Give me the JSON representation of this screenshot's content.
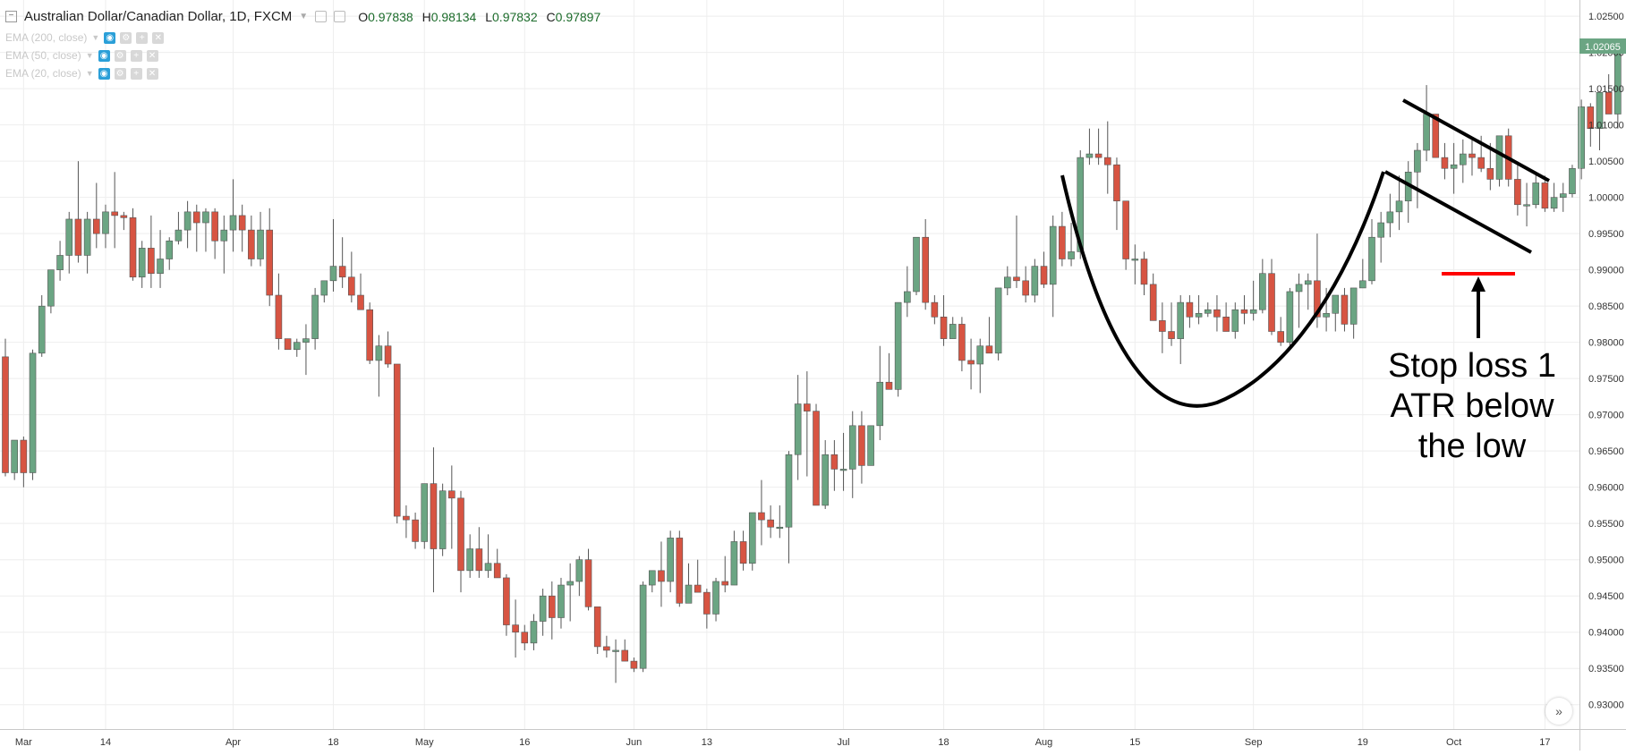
{
  "legend": {
    "title": "Australian Dollar/Canadian Dollar, 1D, FXCM",
    "ohlc": {
      "o_label": "O",
      "o": "0.97838",
      "h_label": "H",
      "h": "0.98134",
      "l_label": "L",
      "l": "0.97832",
      "c_label": "C",
      "c": "0.97897"
    }
  },
  "studies": [
    {
      "label": "EMA (200, close)"
    },
    {
      "label": "EMA (50, close)"
    },
    {
      "label": "EMA (20, close)"
    }
  ],
  "annotation": {
    "lines": [
      "Stop loss 1",
      "ATR below",
      "the low"
    ]
  },
  "price_tag": "1.02065",
  "colors": {
    "up": "#6ba583",
    "down": "#d75442",
    "stop_line": "#ff0000",
    "grid": "#eeeeee"
  },
  "chart_data": {
    "type": "candlestick",
    "title": "Australian Dollar/Canadian Dollar, 1D, FXCM",
    "ylim": [
      0.927,
      1.0265
    ],
    "y_ticks": [
      "1.02500",
      "1.02000",
      "1.01500",
      "1.01000",
      "1.00500",
      "1.00000",
      "0.99500",
      "0.99000",
      "0.98500",
      "0.98000",
      "0.97500",
      "0.97000",
      "0.96500",
      "0.96000",
      "0.95500",
      "0.95000",
      "0.94500",
      "0.94000",
      "0.93500",
      "0.93000"
    ],
    "x_ticks": [
      {
        "label": "Mar",
        "index": 2
      },
      {
        "label": "14",
        "index": 11
      },
      {
        "label": "Apr",
        "index": 25
      },
      {
        "label": "18",
        "index": 36
      },
      {
        "label": "May",
        "index": 46
      },
      {
        "label": "16",
        "index": 57
      },
      {
        "label": "Jun",
        "index": 69
      },
      {
        "label": "13",
        "index": 77
      },
      {
        "label": "Jul",
        "index": 92
      },
      {
        "label": "18",
        "index": 103
      },
      {
        "label": "Aug",
        "index": 114
      },
      {
        "label": "15",
        "index": 124
      },
      {
        "label": "Sep",
        "index": 137
      },
      {
        "label": "19",
        "index": 149
      },
      {
        "label": "Oct",
        "index": 159
      },
      {
        "label": "17",
        "index": 169
      }
    ],
    "candles": [
      [
        0.978,
        0.9805,
        0.9615,
        0.962
      ],
      [
        0.962,
        0.9665,
        0.961,
        0.9665
      ],
      [
        0.9665,
        0.967,
        0.96,
        0.962
      ],
      [
        0.962,
        0.979,
        0.961,
        0.9785
      ],
      [
        0.9785,
        0.9865,
        0.978,
        0.985
      ],
      [
        0.985,
        0.99,
        0.984,
        0.99
      ],
      [
        0.99,
        0.994,
        0.9885,
        0.992
      ],
      [
        0.992,
        0.998,
        0.9895,
        0.997
      ],
      [
        0.997,
        1.005,
        0.991,
        0.992
      ],
      [
        0.992,
        0.998,
        0.9895,
        0.997
      ],
      [
        0.997,
        1.002,
        0.993,
        0.995
      ],
      [
        0.995,
        0.999,
        0.993,
        0.998
      ],
      [
        0.998,
        1.0035,
        0.993,
        0.9975
      ],
      [
        0.9975,
        0.998,
        0.9955,
        0.9972
      ],
      [
        0.9972,
        0.9985,
        0.9885,
        0.989
      ],
      [
        0.989,
        0.994,
        0.9875,
        0.993
      ],
      [
        0.993,
        0.9975,
        0.9875,
        0.9895
      ],
      [
        0.9895,
        0.9955,
        0.9875,
        0.9915
      ],
      [
        0.9915,
        0.9945,
        0.99,
        0.994
      ],
      [
        0.994,
        0.998,
        0.9935,
        0.9955
      ],
      [
        0.9955,
        0.9995,
        0.993,
        0.998
      ],
      [
        0.998,
        0.999,
        0.9925,
        0.9965
      ],
      [
        0.9965,
        0.9985,
        0.9925,
        0.998
      ],
      [
        0.998,
        0.9985,
        0.9915,
        0.994
      ],
      [
        0.994,
        0.9975,
        0.9895,
        0.9955
      ],
      [
        0.9955,
        1.0025,
        0.9925,
        0.9975
      ],
      [
        0.9975,
        0.999,
        0.9925,
        0.9955
      ],
      [
        0.9955,
        0.9975,
        0.9905,
        0.9915
      ],
      [
        0.9915,
        0.998,
        0.9905,
        0.9955
      ],
      [
        0.9955,
        0.9985,
        0.985,
        0.9865
      ],
      [
        0.9865,
        0.9895,
        0.979,
        0.9805
      ],
      [
        0.9805,
        0.9805,
        0.979,
        0.979
      ],
      [
        0.979,
        0.9805,
        0.978,
        0.98
      ],
      [
        0.98,
        0.9825,
        0.9755,
        0.9805
      ],
      [
        0.9805,
        0.9875,
        0.979,
        0.9865
      ],
      [
        0.9865,
        0.9885,
        0.9855,
        0.9885
      ],
      [
        0.9885,
        0.997,
        0.987,
        0.9905
      ],
      [
        0.9905,
        0.9945,
        0.9875,
        0.989
      ],
      [
        0.989,
        0.9925,
        0.9855,
        0.9865
      ],
      [
        0.9865,
        0.9895,
        0.9845,
        0.9845
      ],
      [
        0.9845,
        0.9855,
        0.977,
        0.9775
      ],
      [
        0.9775,
        0.981,
        0.9725,
        0.9795
      ],
      [
        0.9795,
        0.9815,
        0.9765,
        0.977
      ],
      [
        0.977,
        0.977,
        0.955,
        0.956
      ],
      [
        0.956,
        0.9575,
        0.953,
        0.9555
      ],
      [
        0.9555,
        0.9565,
        0.9515,
        0.9525
      ],
      [
        0.9525,
        0.9605,
        0.9515,
        0.9605
      ],
      [
        0.9605,
        0.9655,
        0.9455,
        0.9515
      ],
      [
        0.9515,
        0.9605,
        0.9505,
        0.9595
      ],
      [
        0.9595,
        0.963,
        0.9515,
        0.9585
      ],
      [
        0.9585,
        0.9595,
        0.9455,
        0.9485
      ],
      [
        0.9485,
        0.9535,
        0.9475,
        0.9515
      ],
      [
        0.9515,
        0.9545,
        0.9475,
        0.9485
      ],
      [
        0.9485,
        0.9535,
        0.9475,
        0.9495
      ],
      [
        0.9495,
        0.9515,
        0.9475,
        0.9475
      ],
      [
        0.9475,
        0.948,
        0.9395,
        0.941
      ],
      [
        0.941,
        0.9445,
        0.9365,
        0.94
      ],
      [
        0.94,
        0.941,
        0.9375,
        0.9385
      ],
      [
        0.9385,
        0.9425,
        0.9375,
        0.9415
      ],
      [
        0.9415,
        0.946,
        0.9395,
        0.945
      ],
      [
        0.945,
        0.947,
        0.939,
        0.942
      ],
      [
        0.942,
        0.9475,
        0.9405,
        0.9465
      ],
      [
        0.9465,
        0.9495,
        0.9415,
        0.947
      ],
      [
        0.947,
        0.9505,
        0.945,
        0.95
      ],
      [
        0.95,
        0.9515,
        0.943,
        0.9435
      ],
      [
        0.9435,
        0.9435,
        0.937,
        0.938
      ],
      [
        0.938,
        0.9395,
        0.9365,
        0.9375
      ],
      [
        0.9375,
        0.939,
        0.933,
        0.9375
      ],
      [
        0.9375,
        0.939,
        0.936,
        0.936
      ],
      [
        0.936,
        0.9365,
        0.9345,
        0.935
      ],
      [
        0.935,
        0.947,
        0.9345,
        0.9465
      ],
      [
        0.9465,
        0.9485,
        0.9455,
        0.9485
      ],
      [
        0.9485,
        0.9525,
        0.9435,
        0.947
      ],
      [
        0.947,
        0.954,
        0.9455,
        0.953
      ],
      [
        0.953,
        0.954,
        0.9435,
        0.944
      ],
      [
        0.944,
        0.9495,
        0.944,
        0.9465
      ],
      [
        0.9465,
        0.95,
        0.9455,
        0.9455
      ],
      [
        0.9455,
        0.946,
        0.9405,
        0.9425
      ],
      [
        0.9425,
        0.9475,
        0.9415,
        0.947
      ],
      [
        0.947,
        0.9505,
        0.9455,
        0.9465
      ],
      [
        0.9465,
        0.954,
        0.9465,
        0.9525
      ],
      [
        0.9525,
        0.954,
        0.9485,
        0.9495
      ],
      [
        0.9495,
        0.9565,
        0.9485,
        0.9565
      ],
      [
        0.9565,
        0.961,
        0.952,
        0.9555
      ],
      [
        0.9555,
        0.9575,
        0.953,
        0.9545
      ],
      [
        0.9545,
        0.9575,
        0.953,
        0.9545
      ],
      [
        0.9545,
        0.965,
        0.9495,
        0.9645
      ],
      [
        0.9645,
        0.9755,
        0.961,
        0.9715
      ],
      [
        0.9715,
        0.976,
        0.9615,
        0.9705
      ],
      [
        0.9705,
        0.9715,
        0.9575,
        0.9575
      ],
      [
        0.9575,
        0.9665,
        0.957,
        0.9645
      ],
      [
        0.9645,
        0.9665,
        0.9595,
        0.9625
      ],
      [
        0.9625,
        0.9675,
        0.9595,
        0.9625
      ],
      [
        0.9625,
        0.9705,
        0.9585,
        0.9685
      ],
      [
        0.9685,
        0.9705,
        0.9605,
        0.963
      ],
      [
        0.963,
        0.9685,
        0.963,
        0.9685
      ],
      [
        0.9685,
        0.9795,
        0.9665,
        0.9745
      ],
      [
        0.9745,
        0.9785,
        0.9735,
        0.9735
      ],
      [
        0.9735,
        0.9855,
        0.9725,
        0.9855
      ],
      [
        0.9855,
        0.9905,
        0.9835,
        0.987
      ],
      [
        0.987,
        0.994,
        0.9865,
        0.9945
      ],
      [
        0.9945,
        0.997,
        0.9845,
        0.9855
      ],
      [
        0.9855,
        0.9865,
        0.9825,
        0.9835
      ],
      [
        0.9835,
        0.9865,
        0.9795,
        0.9805
      ],
      [
        0.9805,
        0.9835,
        0.9805,
        0.9825
      ],
      [
        0.9825,
        0.9835,
        0.976,
        0.9775
      ],
      [
        0.9775,
        0.9805,
        0.9735,
        0.977
      ],
      [
        0.977,
        0.9805,
        0.973,
        0.9795
      ],
      [
        0.9795,
        0.9835,
        0.9785,
        0.9785
      ],
      [
        0.9785,
        0.9875,
        0.9775,
        0.9875
      ],
      [
        0.9875,
        0.9905,
        0.9865,
        0.989
      ],
      [
        0.989,
        0.9975,
        0.9875,
        0.9885
      ],
      [
        0.9885,
        0.9905,
        0.9855,
        0.9865
      ],
      [
        0.9865,
        0.9915,
        0.9855,
        0.9905
      ],
      [
        0.9905,
        0.9925,
        0.9875,
        0.988
      ],
      [
        0.988,
        0.9975,
        0.9835,
        0.996
      ],
      [
        0.996,
        0.998,
        0.9905,
        0.9915
      ],
      [
        0.9915,
        0.9965,
        0.9905,
        0.9925
      ],
      [
        0.9925,
        1.0065,
        0.9915,
        1.0055
      ],
      [
        1.0055,
        1.0095,
        1.0045,
        1.006
      ],
      [
        1.006,
        1.0095,
        1.0045,
        1.0055
      ],
      [
        1.0055,
        1.0105,
        1.0005,
        1.0045
      ],
      [
        1.0045,
        1.0055,
        0.9955,
        0.9995
      ],
      [
        0.9995,
        0.9995,
        0.99,
        0.9915
      ],
      [
        0.9915,
        0.9935,
        0.988,
        0.9915
      ],
      [
        0.9915,
        0.9925,
        0.9865,
        0.988
      ],
      [
        0.988,
        0.9895,
        0.983,
        0.983
      ],
      [
        0.983,
        0.9855,
        0.9785,
        0.9815
      ],
      [
        0.9815,
        0.9855,
        0.9795,
        0.9805
      ],
      [
        0.9805,
        0.9865,
        0.977,
        0.9855
      ],
      [
        0.9855,
        0.9865,
        0.982,
        0.9835
      ],
      [
        0.9835,
        0.9865,
        0.9825,
        0.984
      ],
      [
        0.984,
        0.9855,
        0.9835,
        0.9845
      ],
      [
        0.9845,
        0.9865,
        0.9815,
        0.9835
      ],
      [
        0.9835,
        0.9855,
        0.9815,
        0.9815
      ],
      [
        0.9815,
        0.9855,
        0.9805,
        0.9845
      ],
      [
        0.9845,
        0.9865,
        0.9825,
        0.984
      ],
      [
        0.984,
        0.9885,
        0.983,
        0.9845
      ],
      [
        0.9845,
        0.9915,
        0.984,
        0.9895
      ],
      [
        0.9895,
        0.9915,
        0.981,
        0.9815
      ],
      [
        0.9815,
        0.9835,
        0.9795,
        0.98
      ],
      [
        0.98,
        0.9875,
        0.9795,
        0.987
      ],
      [
        0.987,
        0.9895,
        0.982,
        0.988
      ],
      [
        0.988,
        0.9895,
        0.9845,
        0.9885
      ],
      [
        0.9885,
        0.995,
        0.982,
        0.9835
      ],
      [
        0.9835,
        0.9875,
        0.9815,
        0.984
      ],
      [
        0.984,
        0.9865,
        0.9815,
        0.9865
      ],
      [
        0.9865,
        0.9875,
        0.9815,
        0.9825
      ],
      [
        0.9825,
        0.9875,
        0.9805,
        0.9875
      ],
      [
        0.9875,
        0.9915,
        0.9875,
        0.9885
      ],
      [
        0.9885,
        0.997,
        0.988,
        0.9945
      ],
      [
        0.9945,
        0.998,
        0.991,
        0.9965
      ],
      [
        0.9965,
        1.0005,
        0.9945,
        0.998
      ],
      [
        0.998,
        1.003,
        0.9955,
        0.9995
      ],
      [
        0.9995,
        1.005,
        0.9965,
        1.0035
      ],
      [
        1.0035,
        1.0075,
        0.9985,
        1.0065
      ],
      [
        1.0065,
        1.0155,
        1.005,
        1.0115
      ],
      [
        1.0115,
        1.0115,
        1.0055,
        1.0055
      ],
      [
        1.0055,
        1.0075,
        1.0025,
        1.004
      ],
      [
        1.004,
        1.0075,
        1.0005,
        1.0045
      ],
      [
        1.0045,
        1.008,
        1.002,
        1.006
      ],
      [
        1.006,
        1.008,
        1.003,
        1.0055
      ],
      [
        1.0055,
        1.0085,
        1.0035,
        1.004
      ],
      [
        1.004,
        1.0075,
        1.001,
        1.0025
      ],
      [
        1.0025,
        1.0085,
        1.0015,
        1.0085
      ],
      [
        1.0085,
        1.0095,
        1.0015,
        1.0025
      ],
      [
        1.0025,
        1.0045,
        0.9975,
        0.999
      ],
      [
        0.999,
        1.002,
        0.996,
        0.999
      ],
      [
        0.999,
        1.0035,
        0.9985,
        1.002
      ],
      [
        1.002,
        1.003,
        0.998,
        0.9985
      ],
      [
        0.9985,
        1.002,
        0.998,
        1.0
      ],
      [
        1.0,
        1.002,
        0.998,
        1.0005
      ],
      [
        1.0005,
        1.0045,
        1.0,
        1.004
      ],
      [
        1.004,
        1.0135,
        1.0025,
        1.0125
      ],
      [
        1.0125,
        1.013,
        1.007,
        1.0095
      ],
      [
        1.0095,
        1.014,
        1.0065,
        1.0145
      ],
      [
        1.0145,
        1.017,
        1.0115,
        1.0115
      ],
      [
        1.0115,
        1.0215,
        1.0095,
        1.0215
      ]
    ]
  }
}
